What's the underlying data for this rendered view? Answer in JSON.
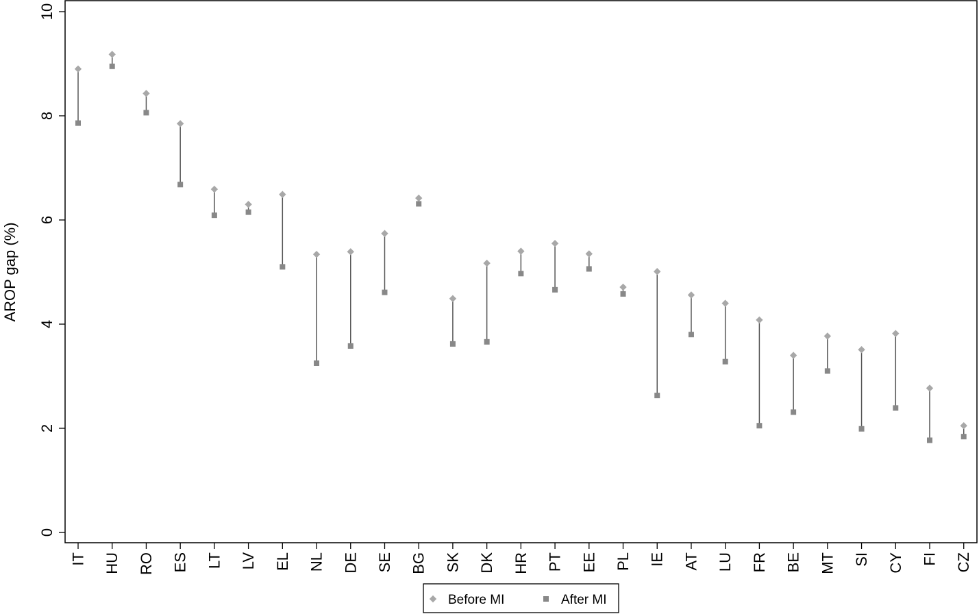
{
  "chart_data": {
    "type": "scatter",
    "style": "dumbbell",
    "ylabel": "AROP gap (%)",
    "xlabel": "",
    "ylim": [
      0,
      10
    ],
    "yticks": [
      0,
      2,
      4,
      6,
      8,
      10
    ],
    "grid": false,
    "legend_position": "bottom-center",
    "categories": [
      "IT",
      "HU",
      "RO",
      "ES",
      "LT",
      "LV",
      "EL",
      "NL",
      "DE",
      "SE",
      "BG",
      "SK",
      "DK",
      "HR",
      "PT",
      "EE",
      "PL",
      "IE",
      "AT",
      "LU",
      "FR",
      "BE",
      "MT",
      "SI",
      "CY",
      "FI",
      "CZ"
    ],
    "series": [
      {
        "name": "Before MI",
        "marker": "diamond",
        "color": "#a8a8a8",
        "values": [
          8.9,
          9.18,
          8.43,
          7.85,
          6.59,
          6.3,
          6.49,
          5.34,
          5.39,
          5.74,
          6.42,
          4.49,
          5.17,
          5.4,
          5.55,
          5.35,
          4.71,
          5.01,
          4.56,
          4.4,
          4.08,
          3.4,
          3.77,
          3.51,
          3.82,
          2.77,
          2.05
        ]
      },
      {
        "name": "After MI",
        "marker": "square",
        "color": "#888888",
        "values": [
          7.86,
          8.95,
          8.06,
          6.68,
          6.09,
          6.15,
          5.1,
          3.25,
          3.58,
          4.61,
          6.31,
          3.62,
          3.66,
          4.97,
          4.66,
          5.06,
          4.58,
          2.63,
          3.8,
          3.28,
          2.05,
          2.31,
          3.1,
          1.99,
          2.39,
          1.77,
          1.84
        ]
      }
    ],
    "connector_color": "#555555"
  }
}
